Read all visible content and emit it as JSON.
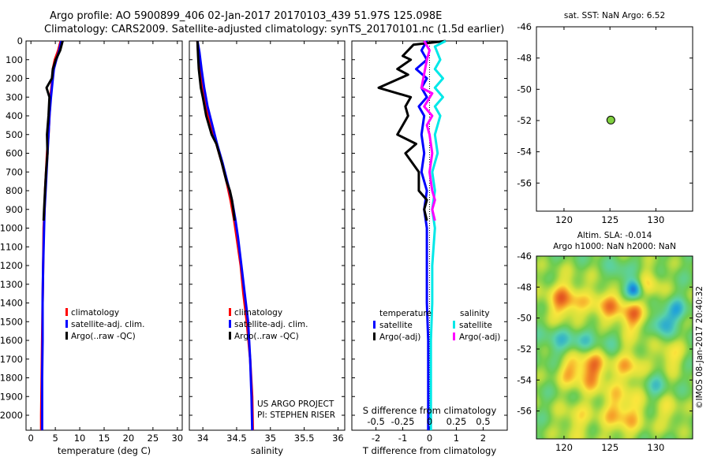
{
  "header": {
    "line1": "Argo profile: AO 5900899_406 02-Jan-2017 20170103_439 51.97S 125.098E",
    "line2": "Climatology: CARS2009. Satellite-adjusted climatology: synTS_20170101.nc (1.5d earlier)"
  },
  "colors": {
    "climatology": "#ff0000",
    "satellite": "#0000ff",
    "argo": "#000000",
    "satellite_s": "#00e8e8",
    "argo_s": "#ff00ff",
    "marker": "#80d040"
  },
  "chart_data": [
    {
      "id": "temperature",
      "type": "line",
      "xlabel": "temperature (deg C)",
      "ylabel": "",
      "xlim": [
        -1,
        31
      ],
      "ylim": [
        2080,
        0
      ],
      "xticks": [
        "0",
        "5",
        "10",
        "15",
        "20",
        "25",
        "30"
      ],
      "xtick_values": [
        0,
        5,
        10,
        15,
        20,
        25,
        30
      ],
      "yticks": [
        "0",
        "100",
        "200",
        "300",
        "400",
        "500",
        "600",
        "700",
        "800",
        "900",
        "1000",
        "1100",
        "1200",
        "1300",
        "1400",
        "1500",
        "1600",
        "1700",
        "1800",
        "1900",
        "2000"
      ],
      "ytick_values": [
        0,
        100,
        200,
        300,
        400,
        500,
        600,
        700,
        800,
        900,
        1000,
        1100,
        1200,
        1300,
        1400,
        1500,
        1600,
        1700,
        1800,
        1900,
        2000
      ],
      "legend": [
        "climatology",
        "satellite-adj. clim.",
        "Argo(..raw -QC)"
      ],
      "legend_position": "lower-center",
      "series": [
        {
          "name": "climatology",
          "color": "#ff0000",
          "points": [
            [
              6.1,
              0
            ],
            [
              5.6,
              50
            ],
            [
              4.9,
              100
            ],
            [
              4.5,
              150
            ],
            [
              4.4,
              200
            ],
            [
              4.0,
              300
            ],
            [
              3.8,
              400
            ],
            [
              3.6,
              500
            ],
            [
              3.3,
              600
            ],
            [
              3.1,
              700
            ],
            [
              2.9,
              800
            ],
            [
              2.8,
              900
            ],
            [
              2.6,
              1000
            ],
            [
              2.5,
              1200
            ],
            [
              2.4,
              1400
            ],
            [
              2.3,
              1600
            ],
            [
              2.25,
              1700
            ],
            [
              2.2,
              1800
            ],
            [
              2.1,
              2000
            ],
            [
              2.1,
              2080
            ]
          ]
        },
        {
          "name": "satellite-adj. clim.",
          "color": "#0000ff",
          "points": [
            [
              6.2,
              0
            ],
            [
              5.8,
              50
            ],
            [
              5.2,
              100
            ],
            [
              4.7,
              150
            ],
            [
              4.5,
              200
            ],
            [
              4.1,
              300
            ],
            [
              3.8,
              400
            ],
            [
              3.6,
              500
            ],
            [
              3.4,
              600
            ],
            [
              3.2,
              700
            ],
            [
              3.0,
              800
            ],
            [
              2.8,
              900
            ],
            [
              2.7,
              1000
            ],
            [
              2.5,
              1200
            ],
            [
              2.4,
              1400
            ],
            [
              2.4,
              1600
            ],
            [
              2.3,
              1800
            ],
            [
              2.3,
              2000
            ],
            [
              2.3,
              2080
            ]
          ]
        },
        {
          "name": "Argo(..raw -QC)",
          "color": "#000000",
          "points": [
            [
              6.5,
              0
            ],
            [
              6.0,
              50
            ],
            [
              5.1,
              100
            ],
            [
              4.5,
              150
            ],
            [
              4.3,
              200
            ],
            [
              3.2,
              250
            ],
            [
              3.8,
              300
            ],
            [
              3.6,
              400
            ],
            [
              3.3,
              500
            ],
            [
              3.4,
              600
            ],
            [
              3.1,
              700
            ],
            [
              2.9,
              800
            ],
            [
              2.8,
              850
            ],
            [
              2.7,
              900
            ],
            [
              2.6,
              960
            ]
          ]
        }
      ]
    },
    {
      "id": "salinity",
      "type": "line",
      "xlabel": "salinity",
      "xlim": [
        33.8,
        36.1
      ],
      "ylim": [
        2080,
        0
      ],
      "xticks": [
        "34",
        "34.5",
        "35",
        "35.5",
        "36"
      ],
      "xtick_values": [
        34,
        34.5,
        35,
        35.5,
        36
      ],
      "legend": [
        "climatology",
        "satellite-adj. clim.",
        "Argo(..raw -QC)"
      ],
      "legend_position": "lower-center",
      "annotation": [
        "US ARGO PROJECT",
        "PI: STEPHEN RISER"
      ],
      "series": [
        {
          "name": "climatology",
          "color": "#ff0000",
          "points": [
            [
              33.92,
              0
            ],
            [
              33.93,
              60
            ],
            [
              33.96,
              150
            ],
            [
              34.0,
              250
            ],
            [
              34.05,
              350
            ],
            [
              34.12,
              450
            ],
            [
              34.2,
              550
            ],
            [
              34.28,
              650
            ],
            [
              34.35,
              750
            ],
            [
              34.41,
              850
            ],
            [
              34.46,
              950
            ],
            [
              34.5,
              1050
            ],
            [
              34.56,
              1200
            ],
            [
              34.6,
              1350
            ],
            [
              34.65,
              1500
            ],
            [
              34.7,
              1700
            ],
            [
              34.73,
              1900
            ],
            [
              34.74,
              2080
            ]
          ]
        },
        {
          "name": "satellite-adj. clim.",
          "color": "#0000ff",
          "points": [
            [
              33.92,
              0
            ],
            [
              33.95,
              60
            ],
            [
              33.98,
              150
            ],
            [
              34.02,
              250
            ],
            [
              34.07,
              350
            ],
            [
              34.14,
              450
            ],
            [
              34.21,
              550
            ],
            [
              34.29,
              650
            ],
            [
              34.36,
              750
            ],
            [
              34.43,
              850
            ],
            [
              34.48,
              950
            ],
            [
              34.52,
              1050
            ],
            [
              34.57,
              1200
            ],
            [
              34.62,
              1350
            ],
            [
              34.67,
              1500
            ],
            [
              34.7,
              1700
            ],
            [
              34.72,
              1900
            ],
            [
              34.73,
              2080
            ]
          ]
        },
        {
          "name": "Argo(..raw -QC)",
          "color": "#000000",
          "points": [
            [
              33.92,
              0
            ],
            [
              33.93,
              80
            ],
            [
              33.94,
              150
            ],
            [
              33.97,
              250
            ],
            [
              34.0,
              300
            ],
            [
              34.05,
              400
            ],
            [
              34.13,
              500
            ],
            [
              34.2,
              550
            ],
            [
              34.28,
              650
            ],
            [
              34.35,
              750
            ],
            [
              34.4,
              800
            ],
            [
              34.43,
              850
            ],
            [
              34.45,
              900
            ],
            [
              34.47,
              960
            ]
          ]
        }
      ]
    },
    {
      "id": "difference",
      "type": "line",
      "xlabel": "T difference from climatology",
      "xlabel_top": "S difference from climatology",
      "xlim": [
        -2.9,
        2.9
      ],
      "ylim": [
        2080,
        0
      ],
      "xticks": [
        "-2",
        "-1",
        "0",
        "1",
        "2"
      ],
      "xtick_values": [
        -2,
        -1,
        0,
        1,
        2
      ],
      "xticks_s": [
        "-0.5",
        "-0.25",
        "0",
        "0.25",
        "0.5"
      ],
      "xtick_s_values": [
        -2,
        -1,
        0,
        1,
        2
      ],
      "legend_left_title": "temperature",
      "legend_right_title": "salinity",
      "legend": [
        "satellite",
        "Argo(-adj)",
        "satellite",
        "Argo(-adj)"
      ],
      "legend_position": "lower-center",
      "series": [
        {
          "name": "satellite",
          "color": "#0000ff",
          "points": [
            [
              -0.1,
              0
            ],
            [
              -0.3,
              50
            ],
            [
              -0.1,
              100
            ],
            [
              -0.5,
              150
            ],
            [
              -0.1,
              200
            ],
            [
              -0.3,
              250
            ],
            [
              -0.1,
              300
            ],
            [
              -0.4,
              350
            ],
            [
              -0.2,
              400
            ],
            [
              -0.3,
              500
            ],
            [
              -0.2,
              600
            ],
            [
              -0.3,
              700
            ],
            [
              -0.1,
              800
            ],
            [
              -0.2,
              900
            ],
            [
              -0.1,
              1000
            ],
            [
              -0.1,
              1200
            ],
            [
              -0.1,
              1400
            ],
            [
              -0.05,
              1600
            ],
            [
              -0.05,
              1800
            ],
            [
              -0.05,
              2000
            ],
            [
              -0.05,
              2080
            ]
          ]
        },
        {
          "name": "Argo(-adj)",
          "color": "#000000",
          "points": [
            [
              0.6,
              0
            ],
            [
              -0.6,
              20
            ],
            [
              -1.0,
              80
            ],
            [
              -0.7,
              100
            ],
            [
              -1.2,
              150
            ],
            [
              -0.8,
              180
            ],
            [
              -1.9,
              250
            ],
            [
              -0.7,
              300
            ],
            [
              -0.9,
              350
            ],
            [
              -0.8,
              400
            ],
            [
              -1.2,
              500
            ],
            [
              -0.5,
              550
            ],
            [
              -0.9,
              600
            ],
            [
              -0.4,
              700
            ],
            [
              -0.4,
              800
            ],
            [
              -0.1,
              850
            ],
            [
              -0.2,
              900
            ],
            [
              -0.1,
              960
            ]
          ]
        },
        {
          "name": "satellite",
          "color": "#00e8e8",
          "points": [
            [
              0.6,
              0
            ],
            [
              0.2,
              30
            ],
            [
              0.4,
              100
            ],
            [
              0.2,
              150
            ],
            [
              0.5,
              200
            ],
            [
              0.2,
              250
            ],
            [
              0.5,
              300
            ],
            [
              0.2,
              350
            ],
            [
              0.4,
              400
            ],
            [
              0.2,
              500
            ],
            [
              0.3,
              600
            ],
            [
              0.1,
              700
            ],
            [
              0.2,
              800
            ],
            [
              0.1,
              900
            ],
            [
              0.2,
              1000
            ],
            [
              0.1,
              1200
            ],
            [
              0.1,
              1400
            ],
            [
              0.05,
              1600
            ],
            [
              0.05,
              1800
            ],
            [
              0.05,
              2000
            ],
            [
              0.05,
              2080
            ]
          ]
        },
        {
          "name": "Argo(-adj)",
          "color": "#ff00ff",
          "points": [
            [
              -0.2,
              0
            ],
            [
              0.0,
              50
            ],
            [
              -0.1,
              100
            ],
            [
              -0.3,
              250
            ],
            [
              0.1,
              280
            ],
            [
              -0.2,
              350
            ],
            [
              0.1,
              400
            ],
            [
              -0.1,
              450
            ],
            [
              0.0,
              500
            ],
            [
              0.1,
              600
            ],
            [
              0.0,
              700
            ],
            [
              0.1,
              800
            ],
            [
              0.2,
              850
            ],
            [
              0.1,
              900
            ],
            [
              0.2,
              960
            ]
          ]
        }
      ]
    },
    {
      "id": "sst_map",
      "type": "scatter",
      "title": "sat. SST: NaN Argo: 6.52",
      "xlim": [
        117,
        134
      ],
      "ylim": [
        -57.8,
        -46
      ],
      "xticks": [
        "120",
        "125",
        "130"
      ],
      "xtick_values": [
        120,
        125,
        130
      ],
      "yticks": [
        "-46",
        "-48",
        "-50",
        "-52",
        "-54",
        "-56"
      ],
      "ytick_values": [
        -46,
        -48,
        -50,
        -52,
        -54,
        -56
      ],
      "points": [
        [
          125.098,
          -51.97
        ]
      ]
    },
    {
      "id": "sla_map",
      "type": "heatmap",
      "title": "Altim. SLA: -0.014",
      "subtitle": "Argo h1000: NaN h2000: NaN",
      "xlim": [
        117,
        134
      ],
      "ylim": [
        -57.8,
        -46
      ],
      "xticks": [
        "120",
        "125",
        "130"
      ],
      "xtick_values": [
        120,
        125,
        130
      ],
      "yticks": [
        "-46",
        "-48",
        "-50",
        "-52",
        "-54",
        "-56"
      ],
      "ytick_values": [
        -46,
        -48,
        -50,
        -52,
        -54,
        -56
      ],
      "side_label": "©IMOS 08-Jan-2017 20:40:32"
    }
  ]
}
